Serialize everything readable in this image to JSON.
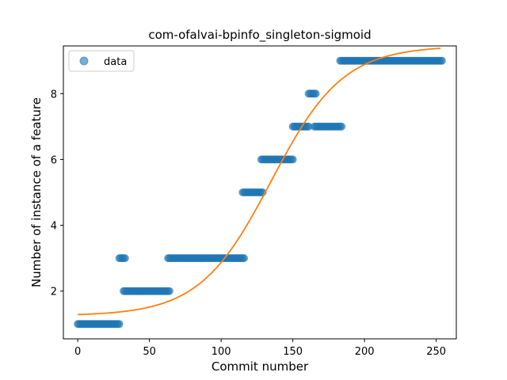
{
  "chart_data": {
    "type": "scatter",
    "title": "com-ofalvai-bpinfo_singleton-sigmoid",
    "xlabel": "Commit number",
    "ylabel": "Number of instance of a feature",
    "xlim": [
      -10,
      264
    ],
    "ylim": [
      0.55,
      9.45
    ],
    "xticks": [
      0,
      50,
      100,
      150,
      200,
      250
    ],
    "yticks": [
      2,
      4,
      6,
      8
    ],
    "grid": false,
    "legend": {
      "placement": "top-left",
      "entries": [
        "data"
      ]
    },
    "colors": {
      "data": "#1f77b4",
      "fit": "#ff7f0e"
    },
    "series": [
      {
        "name": "data",
        "kind": "scatter",
        "segments": [
          {
            "x_start": 0,
            "x_end": 29,
            "y": 1
          },
          {
            "x_start": 29,
            "x_end": 33,
            "y": 3
          },
          {
            "x_start": 32,
            "x_end": 64,
            "y": 2
          },
          {
            "x_start": 63,
            "x_end": 116,
            "y": 3
          },
          {
            "x_start": 115,
            "x_end": 129,
            "y": 5
          },
          {
            "x_start": 128,
            "x_end": 150,
            "y": 6
          },
          {
            "x_start": 150,
            "x_end": 161,
            "y": 7
          },
          {
            "x_start": 161,
            "x_end": 166,
            "y": 8
          },
          {
            "x_start": 165,
            "x_end": 184,
            "y": 7
          },
          {
            "x_start": 183,
            "x_end": 254,
            "y": 9
          }
        ]
      },
      {
        "kind": "line",
        "model": "sigmoid",
        "params": {
          "lower": 1.25,
          "upper": 9.45,
          "midpoint": 135,
          "scale": 25
        },
        "x_range": [
          0,
          253
        ]
      }
    ]
  }
}
